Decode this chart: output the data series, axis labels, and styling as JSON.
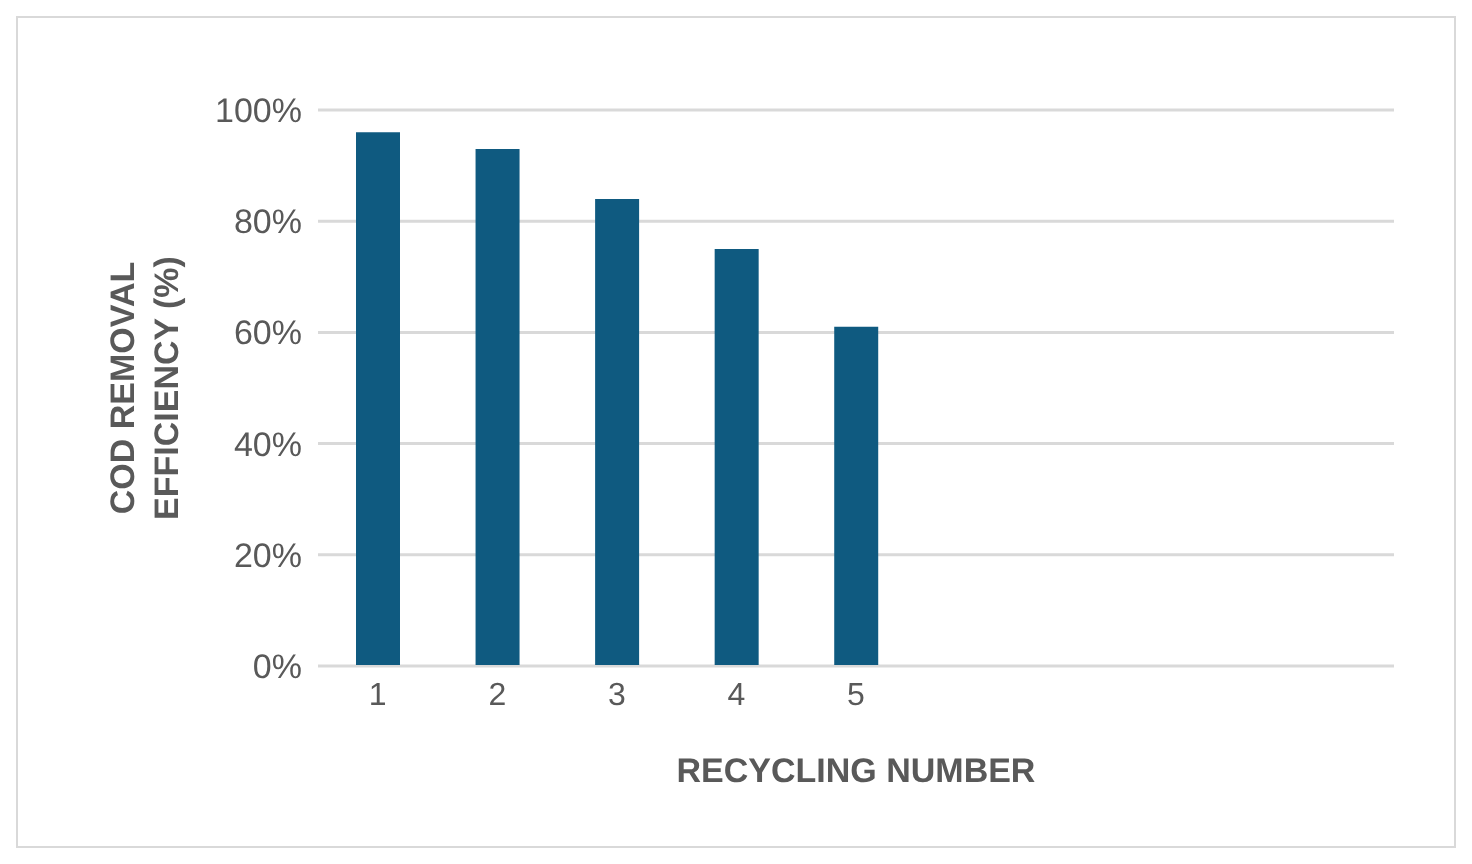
{
  "chart_data": {
    "type": "bar",
    "xlabel": "RECYCLING NUMBER",
    "ylabel": "COD REMOVAL EFFICIENCY (%)",
    "categories": [
      "1",
      "2",
      "3",
      "4",
      "5",
      null,
      null,
      null,
      null
    ],
    "values": [
      96,
      93,
      84,
      75,
      61,
      null,
      null,
      null,
      null
    ],
    "color": "#0f5a80",
    "ylim": [
      0,
      100
    ],
    "yticks": [
      {
        "value": 0,
        "label": "0%"
      },
      {
        "value": 20,
        "label": "20%"
      },
      {
        "value": 40,
        "label": "40%"
      },
      {
        "value": 60,
        "label": "60%"
      },
      {
        "value": 80,
        "label": "80%"
      },
      {
        "value": 100,
        "label": "100%"
      }
    ],
    "grid": "y",
    "legend": false
  }
}
